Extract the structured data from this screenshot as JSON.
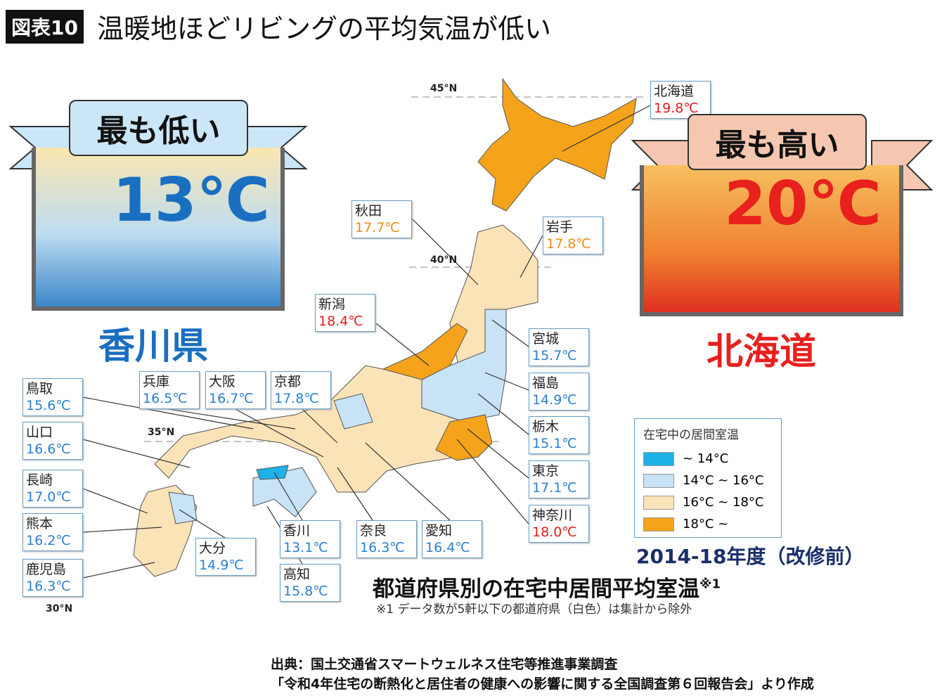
{
  "header": {
    "figure_tag": "図表10",
    "title": "温暖地ほどリビングの平均気温が低い"
  },
  "lowest": {
    "ribbon": "最も低い",
    "temp": "13℃",
    "prefecture": "香川県"
  },
  "highest": {
    "ribbon": "最も高い",
    "temp": "20℃",
    "prefecture": "北海道"
  },
  "latitudes": [
    "45°N",
    "40°N",
    "35°N",
    "30°N"
  ],
  "colors": {
    "lt14": "#1eb1e8",
    "14to16": "#c8e3f6",
    "16to18": "#fbe3b8",
    "gt18": "#f5a31a",
    "low_accent": "#1a6fc0",
    "high_accent": "#e8201e"
  },
  "labels": [
    {
      "name": "北海道",
      "value": "19.8℃",
      "cls": "red"
    },
    {
      "name": "秋田",
      "value": "17.7℃",
      "cls": "orange"
    },
    {
      "name": "岩手",
      "value": "17.8℃",
      "cls": "orange"
    },
    {
      "name": "新潟",
      "value": "18.4℃",
      "cls": "red"
    },
    {
      "name": "宮城",
      "value": "15.7℃",
      "cls": "blue"
    },
    {
      "name": "福島",
      "value": "14.9℃",
      "cls": "blue"
    },
    {
      "name": "栃木",
      "value": "15.1℃",
      "cls": "blue"
    },
    {
      "name": "東京",
      "value": "17.1℃",
      "cls": "blue"
    },
    {
      "name": "神奈川",
      "value": "18.0℃",
      "cls": "red"
    },
    {
      "name": "兵庫",
      "value": "16.5℃",
      "cls": "blue"
    },
    {
      "name": "大阪",
      "value": "16.7℃",
      "cls": "blue"
    },
    {
      "name": "京都",
      "value": "17.8℃",
      "cls": "blue"
    },
    {
      "name": "鳥取",
      "value": "15.6℃",
      "cls": "blue"
    },
    {
      "name": "山口",
      "value": "16.6℃",
      "cls": "blue"
    },
    {
      "name": "長崎",
      "value": "17.0℃",
      "cls": "blue"
    },
    {
      "name": "熊本",
      "value": "16.2℃",
      "cls": "blue"
    },
    {
      "name": "鹿児島",
      "value": "16.3℃",
      "cls": "blue"
    },
    {
      "name": "大分",
      "value": "14.9℃",
      "cls": "blue"
    },
    {
      "name": "香川",
      "value": "13.1℃",
      "cls": "blue"
    },
    {
      "name": "高知",
      "value": "15.8℃",
      "cls": "blue"
    },
    {
      "name": "奈良",
      "value": "16.3℃",
      "cls": "blue"
    },
    {
      "name": "愛知",
      "value": "16.4℃",
      "cls": "blue"
    }
  ],
  "legend": {
    "title": "在宅中の居間室温",
    "items": [
      "~ 14°C",
      "14°C ~ 16°C",
      "16°C ~ 18°C",
      "18°C ~"
    ]
  },
  "period": "2014-18年度（改修前）",
  "map_title": "都道府県別の在宅中居間平均室温",
  "map_title_note": "※1",
  "footnote": "※1 データ数が5軒以下の都道府県（白色）は集計から除外",
  "source": {
    "line1": "出典：国土交通省スマートウェルネス住宅等推進事業調査",
    "line2": "「令和4年住宅の断熱化と居住者の健康への影響に関する全国調査第６回報告会」より作成"
  }
}
